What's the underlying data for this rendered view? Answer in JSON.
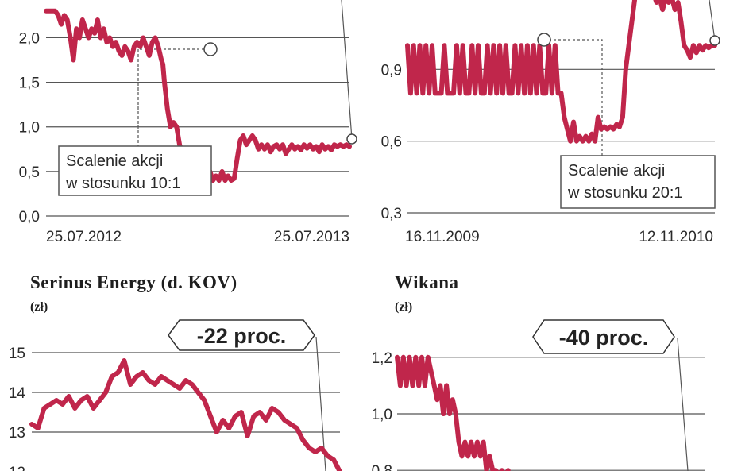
{
  "colors": {
    "series": "#c0264b",
    "grid": "#555555",
    "text": "#2a2a2a",
    "note_border": "#555555"
  },
  "chart_data": [
    {
      "id": "chart-1",
      "type": "line",
      "title": "",
      "unit": "",
      "grid": true,
      "ylim": [
        0,
        2.2
      ],
      "yticks": [
        0,
        0.5,
        1.0,
        1.5,
        2.0
      ],
      "ytick_labels": [
        "0,0",
        "0,5",
        "1,0",
        "1,5",
        "2,0"
      ],
      "xtick_labels": [
        "25.07.2012",
        "25.07.2013"
      ],
      "annotations": [
        {
          "text": [
            "Scalenie akcji",
            "w stosunku 10:1"
          ],
          "point": [
            0.77,
            1.7
          ]
        }
      ],
      "series": [
        {
          "x": [
            0,
            0.02,
            0.04,
            0.06,
            0.08,
            0.1,
            0.12,
            0.14,
            0.16,
            0.18,
            0.2,
            0.22,
            0.24,
            0.26,
            0.28,
            0.3,
            0.32,
            0.34,
            0.36,
            0.38,
            0.4,
            0.42,
            0.44,
            0.46,
            0.48,
            0.5,
            0.52,
            0.54,
            0.56,
            0.58,
            0.6,
            0.62,
            0.64,
            0.66,
            0.68,
            0.7,
            0.72,
            0.74,
            0.76,
            0.77,
            0.78,
            0.8,
            0.82,
            0.84,
            0.86,
            0.88,
            0.9,
            0.92,
            0.94,
            0.96,
            0.98,
            1.0,
            1.02,
            1.04,
            1.06,
            1.08,
            1.1,
            1.12,
            1.14,
            1.16,
            1.18,
            1.2,
            1.22,
            1.24,
            1.26,
            1.28,
            1.3,
            1.32,
            1.34,
            1.36,
            1.38,
            1.4,
            1.42,
            1.44,
            1.46,
            1.48,
            1.5,
            1.52,
            1.54,
            1.56,
            1.58,
            1.6,
            1.62,
            1.64,
            1.66,
            1.68,
            1.7,
            1.72,
            1.74,
            1.76,
            1.78,
            1.8,
            1.82,
            1.84,
            1.86,
            1.88,
            1.9,
            1.92,
            1.94,
            1.96,
            1.98,
            2.0
          ],
          "values": [
            2.3,
            2.3,
            2.3,
            2.3,
            2.25,
            2.15,
            2.25,
            2.2,
            2.0,
            1.75,
            2.1,
            2.0,
            2.2,
            2.1,
            2.0,
            2.1,
            2.05,
            2.2,
            2.0,
            2.1,
            1.95,
            2.0,
            1.9,
            1.95,
            1.85,
            1.8,
            1.9,
            1.85,
            1.75,
            1.9,
            1.95,
            1.9,
            2.0,
            1.9,
            1.8,
            1.95,
            2.0,
            1.9,
            1.75,
            1.7,
            1.5,
            1.2,
            1.0,
            1.05,
            1.0,
            0.8,
            0.7,
            0.65,
            0.6,
            0.55,
            0.6,
            0.45,
            0.5,
            0.45,
            0.55,
            0.5,
            0.4,
            0.45,
            0.4,
            0.5,
            0.4,
            0.45,
            0.4,
            0.42,
            0.65,
            0.85,
            0.9,
            0.8,
            0.85,
            0.9,
            0.85,
            0.75,
            0.8,
            0.75,
            0.8,
            0.72,
            0.78,
            0.8,
            0.75,
            0.8,
            0.7,
            0.75,
            0.8,
            0.75,
            0.78,
            0.74,
            0.8,
            0.76,
            0.8,
            0.75,
            0.78,
            0.72,
            0.8,
            0.75,
            0.78,
            0.74,
            0.8,
            0.78,
            0.8,
            0.78,
            0.8,
            0.78
          ]
        }
      ]
    },
    {
      "id": "chart-2",
      "type": "line",
      "title": "",
      "unit": "",
      "grid": true,
      "ylim": [
        0.3,
        1.2
      ],
      "yticks": [
        0.3,
        0.6,
        0.9
      ],
      "ytick_labels": [
        "0,3",
        "0,6",
        "0,9"
      ],
      "xtick_labels": [
        "16.11.2009",
        "12.11.2010"
      ],
      "annotations": [
        {
          "text": [
            "Scalenie akcji",
            "w stosunku 20:1"
          ],
          "point": [
            0.86,
            1.0
          ]
        }
      ],
      "series": [
        {
          "x": [
            0,
            0.01,
            0.02,
            0.03,
            0.04,
            0.05,
            0.06,
            0.07,
            0.08,
            0.09,
            0.1,
            0.11,
            0.12,
            0.13,
            0.14,
            0.15,
            0.16,
            0.17,
            0.18,
            0.19,
            0.2,
            0.21,
            0.22,
            0.23,
            0.24,
            0.25,
            0.26,
            0.27,
            0.28,
            0.29,
            0.3,
            0.31,
            0.32,
            0.33,
            0.34,
            0.35,
            0.36,
            0.37,
            0.38,
            0.39,
            0.4,
            0.41,
            0.42,
            0.43,
            0.44,
            0.45,
            0.46,
            0.47,
            0.48,
            0.49,
            0.5,
            0.51,
            0.52,
            0.53,
            0.54,
            0.55,
            0.56,
            0.57,
            0.58,
            0.59,
            0.6,
            0.61,
            0.62,
            0.63,
            0.64,
            0.65,
            0.66,
            0.67,
            0.68,
            0.69,
            0.7,
            0.71,
            0.72,
            0.73,
            0.74,
            0.75,
            0.76,
            0.77,
            0.78,
            0.79,
            0.8,
            0.81,
            0.82,
            0.83,
            0.84,
            0.85,
            0.86,
            0.87,
            0.88,
            0.89,
            0.9,
            0.91,
            0.92,
            0.93,
            0.94,
            0.95,
            0.96,
            0.97,
            0.98,
            0.99,
            1.0
          ],
          "values": [
            1.0,
            0.8,
            1.0,
            0.8,
            1.0,
            0.8,
            1.0,
            0.8,
            1.0,
            0.8,
            0.8,
            0.8,
            1.0,
            0.8,
            0.8,
            0.8,
            1.0,
            0.8,
            1.0,
            0.8,
            0.8,
            1.0,
            0.8,
            1.0,
            0.8,
            0.8,
            1.0,
            0.8,
            1.0,
            0.8,
            1.0,
            0.8,
            1.0,
            0.8,
            0.8,
            1.0,
            0.8,
            1.0,
            0.8,
            1.0,
            0.8,
            1.0,
            0.8,
            1.0,
            0.8,
            0.8,
            1.0,
            0.8,
            1.0,
            0.8,
            0.8,
            0.7,
            0.65,
            0.6,
            0.68,
            0.6,
            0.62,
            0.6,
            0.62,
            0.6,
            0.63,
            0.6,
            0.7,
            0.65,
            0.66,
            0.65,
            0.66,
            0.65,
            0.67,
            0.66,
            0.7,
            0.9,
            1.0,
            1.1,
            1.2,
            1.22,
            1.3,
            1.2,
            1.25,
            1.2,
            1.22,
            1.18,
            1.2,
            1.15,
            1.2,
            1.18,
            1.2,
            1.15,
            1.18,
            1.1,
            1.0,
            0.98,
            0.95,
            1.0,
            0.97,
            1.0,
            0.98,
            1.0,
            0.99,
            1.0,
            1.0
          ]
        }
      ]
    },
    {
      "id": "chart-3",
      "type": "line",
      "title": "Serinus Energy (d. KOV)",
      "unit": "(zł)",
      "grid": true,
      "ylim": [
        12,
        15.2
      ],
      "yticks": [
        12,
        13,
        14,
        15
      ],
      "ytick_labels": [
        "12",
        "13",
        "14",
        "15"
      ],
      "callout": "-22 proc.",
      "series": [
        {
          "x": [
            0,
            0.02,
            0.04,
            0.06,
            0.08,
            0.1,
            0.12,
            0.14,
            0.16,
            0.18,
            0.2,
            0.22,
            0.24,
            0.26,
            0.28,
            0.3,
            0.32,
            0.34,
            0.36,
            0.38,
            0.4,
            0.42,
            0.44,
            0.46,
            0.48,
            0.5,
            0.52,
            0.54,
            0.56,
            0.58,
            0.6,
            0.62,
            0.64,
            0.66,
            0.68,
            0.7,
            0.72,
            0.74,
            0.76,
            0.78,
            0.8,
            0.82,
            0.84,
            0.86,
            0.88,
            0.9,
            0.92,
            0.94,
            0.96,
            0.98,
            1.0
          ],
          "values": [
            13.2,
            13.1,
            13.6,
            13.7,
            13.8,
            13.7,
            13.9,
            13.6,
            13.8,
            13.9,
            13.6,
            13.8,
            14.0,
            14.4,
            14.5,
            14.8,
            14.2,
            14.4,
            14.5,
            14.3,
            14.2,
            14.4,
            14.3,
            14.2,
            14.1,
            14.3,
            14.2,
            14.0,
            13.8,
            13.4,
            13.0,
            13.3,
            13.1,
            13.4,
            13.5,
            12.9,
            13.4,
            13.5,
            13.3,
            13.6,
            13.5,
            13.3,
            13.2,
            13.1,
            12.8,
            12.6,
            12.5,
            12.6,
            12.4,
            12.3,
            12.0
          ]
        }
      ]
    },
    {
      "id": "chart-4",
      "type": "line",
      "title": "Wikana",
      "unit": "(zł)",
      "grid": true,
      "ylim": [
        0.75,
        1.25
      ],
      "yticks": [
        0.8,
        1.0,
        1.2
      ],
      "ytick_labels": [
        "0,8",
        "1,0",
        "1,2"
      ],
      "callout": "-40 proc.",
      "series": [
        {
          "x": [
            0,
            0.01,
            0.02,
            0.03,
            0.04,
            0.05,
            0.06,
            0.07,
            0.08,
            0.09,
            0.1,
            0.11,
            0.12,
            0.13,
            0.14,
            0.15,
            0.16,
            0.17,
            0.18,
            0.19,
            0.2,
            0.21,
            0.22,
            0.23,
            0.24,
            0.25,
            0.26,
            0.27,
            0.28,
            0.29,
            0.3,
            0.31,
            0.32,
            0.33,
            0.34,
            0.35,
            0.36
          ],
          "values": [
            1.2,
            1.1,
            1.2,
            1.1,
            1.2,
            1.1,
            1.2,
            1.1,
            1.2,
            1.1,
            1.2,
            1.15,
            1.1,
            1.05,
            1.1,
            1.0,
            1.1,
            1.0,
            1.05,
            1.0,
            0.9,
            0.85,
            0.9,
            0.85,
            0.9,
            0.85,
            0.9,
            0.85,
            0.9,
            0.8,
            0.85,
            0.8,
            0.8,
            0.78,
            0.8,
            0.78,
            0.8
          ]
        }
      ]
    }
  ]
}
